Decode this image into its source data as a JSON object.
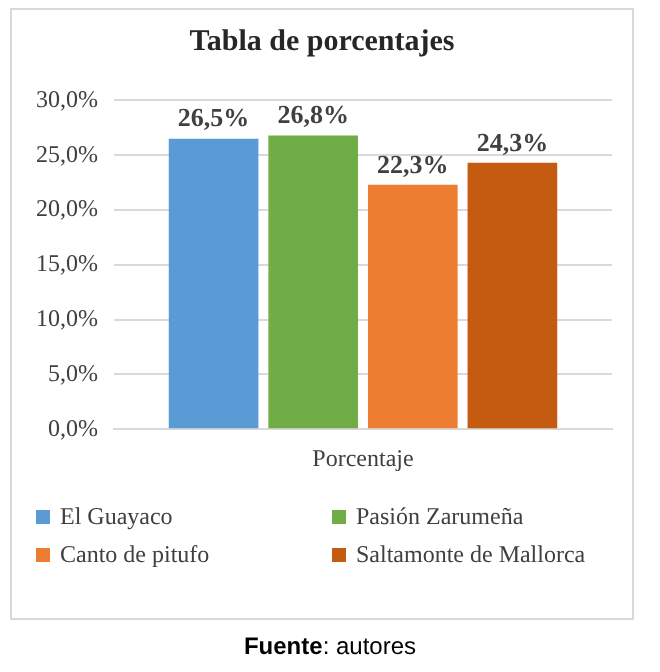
{
  "chart_data": {
    "type": "bar",
    "title": "Tabla de porcentajes",
    "categories": [
      "Porcentaje"
    ],
    "series": [
      {
        "name": "El Guayaco",
        "color": "#5b9bd5",
        "values": [
          26.5
        ],
        "value_labels": [
          "26,5%"
        ]
      },
      {
        "name": "Pasión Zarumeña",
        "color": "#70ad47",
        "values": [
          26.8
        ],
        "value_labels": [
          "26,8%"
        ]
      },
      {
        "name": "Canto de pitufo",
        "color": "#ed7d31",
        "values": [
          22.3
        ],
        "value_labels": [
          "22,3%"
        ]
      },
      {
        "name": "Saltamonte de Mallorca",
        "color": "#c55a11",
        "values": [
          24.3
        ],
        "value_labels": [
          "24,3%"
        ]
      }
    ],
    "ylim": [
      0,
      30
    ],
    "yticks": [
      {
        "value": 0,
        "label": "0,0%"
      },
      {
        "value": 5,
        "label": "5,0%"
      },
      {
        "value": 10,
        "label": "10,0%"
      },
      {
        "value": 15,
        "label": "15,0%"
      },
      {
        "value": 20,
        "label": "20,0%"
      },
      {
        "value": 25,
        "label": "25,0%"
      },
      {
        "value": 30,
        "label": "30,0%"
      }
    ],
    "grid": "y",
    "legend": "bottom",
    "annotations": [
      "Fuente: autores"
    ]
  }
}
